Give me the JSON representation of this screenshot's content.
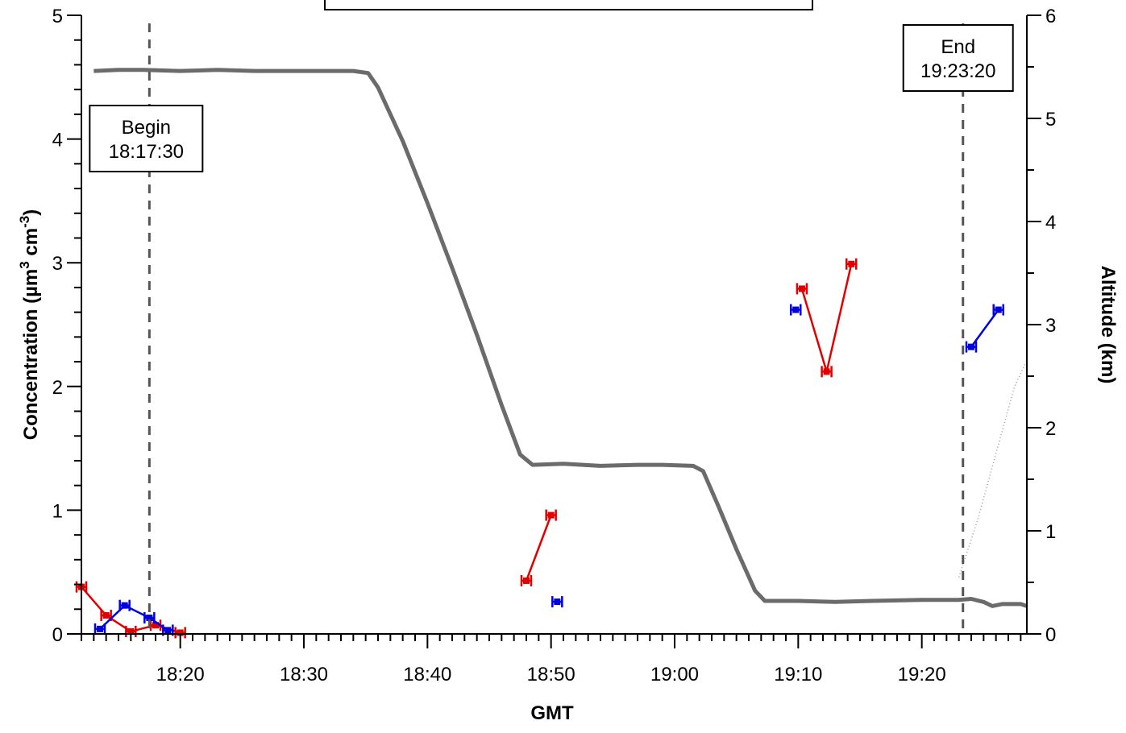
{
  "chart_data": {
    "type": "line",
    "xlabel": "GMT",
    "ylabel_text": "Concentration  (µm",
    "ylabel_sup1": "3",
    "ylabel_mid": " cm",
    "ylabel_sup2": "-3",
    "ylabel_end": ")",
    "y2label": "Altitude  (km)",
    "x_range_min": [
      1092.0,
      1168.5
    ],
    "ylim": [
      0,
      5
    ],
    "y2lim": [
      0,
      6
    ],
    "x_ticks": [
      {
        "min": 1100,
        "label": "18:20"
      },
      {
        "min": 1110,
        "label": "18:30"
      },
      {
        "min": 1120,
        "label": "18:40"
      },
      {
        "min": 1130,
        "label": "18:50"
      },
      {
        "min": 1140,
        "label": "19:00"
      },
      {
        "min": 1150,
        "label": "19:10"
      },
      {
        "min": 1160,
        "label": "19:20"
      }
    ],
    "y_ticks": [
      "0",
      "1",
      "2",
      "3",
      "4",
      "5"
    ],
    "y2_ticks": [
      "0",
      "1",
      "2",
      "3",
      "4",
      "5",
      "6"
    ],
    "annotations": [
      {
        "lines": [
          "Begin",
          "18:17:30"
        ],
        "x_min": 1097.5
      },
      {
        "lines": [
          "End",
          "19:23:20"
        ],
        "x_min": 1163.33
      }
    ],
    "altitude_km": [
      [
        1093.0,
        5.46
      ],
      [
        1095.0,
        5.47
      ],
      [
        1097.0,
        5.47
      ],
      [
        1100.0,
        5.46
      ],
      [
        1103.0,
        5.47
      ],
      [
        1106.0,
        5.46
      ],
      [
        1110.0,
        5.46
      ],
      [
        1114.0,
        5.46
      ],
      [
        1115.2,
        5.44
      ],
      [
        1116.0,
        5.3
      ],
      [
        1118.0,
        4.78
      ],
      [
        1120.0,
        4.18
      ],
      [
        1122.0,
        3.55
      ],
      [
        1124.0,
        2.9
      ],
      [
        1126.0,
        2.22
      ],
      [
        1127.5,
        1.74
      ],
      [
        1128.5,
        1.64
      ],
      [
        1131.0,
        1.65
      ],
      [
        1134.0,
        1.63
      ],
      [
        1137.0,
        1.64
      ],
      [
        1139.0,
        1.64
      ],
      [
        1141.5,
        1.63
      ],
      [
        1142.3,
        1.58
      ],
      [
        1143.5,
        1.25
      ],
      [
        1145.0,
        0.82
      ],
      [
        1146.5,
        0.42
      ],
      [
        1147.3,
        0.32
      ],
      [
        1150.0,
        0.32
      ],
      [
        1153.0,
        0.31
      ],
      [
        1156.0,
        0.32
      ],
      [
        1160.0,
        0.33
      ],
      [
        1163.0,
        0.33
      ],
      [
        1164.0,
        0.34
      ],
      [
        1165.0,
        0.31
      ],
      [
        1165.7,
        0.27
      ],
      [
        1166.5,
        0.29
      ],
      [
        1168.0,
        0.29
      ],
      [
        1168.5,
        0.27
      ]
    ],
    "altitude_dotted_km": [
      [
        1163.0,
        0.55
      ],
      [
        1164.5,
        1.1
      ],
      [
        1166.0,
        1.75
      ],
      [
        1167.5,
        2.4
      ],
      [
        1168.5,
        2.65
      ]
    ],
    "series": [
      {
        "color": "#e00000",
        "segments": [
          [
            [
              1092.0,
              0.38
            ],
            [
              1094.0,
              0.15
            ],
            [
              1096.0,
              0.02
            ],
            [
              1098.0,
              0.07
            ],
            [
              1100.0,
              0.01
            ]
          ],
          [
            [
              1128.0,
              0.43
            ],
            [
              1130.0,
              0.96
            ]
          ],
          [
            [
              1150.3,
              2.79
            ],
            [
              1152.3,
              2.12
            ],
            [
              1154.3,
              2.99
            ]
          ]
        ]
      },
      {
        "color": "#0000e0",
        "segments": [
          [
            [
              1093.5,
              0.04
            ],
            [
              1095.5,
              0.23
            ],
            [
              1097.5,
              0.13
            ],
            [
              1099.0,
              0.03
            ]
          ],
          [
            [
              1130.5,
              0.26
            ]
          ],
          [
            [
              1149.8,
              2.62
            ]
          ],
          [
            [
              1164.0,
              2.32
            ],
            [
              1166.2,
              2.62
            ]
          ]
        ]
      }
    ]
  }
}
